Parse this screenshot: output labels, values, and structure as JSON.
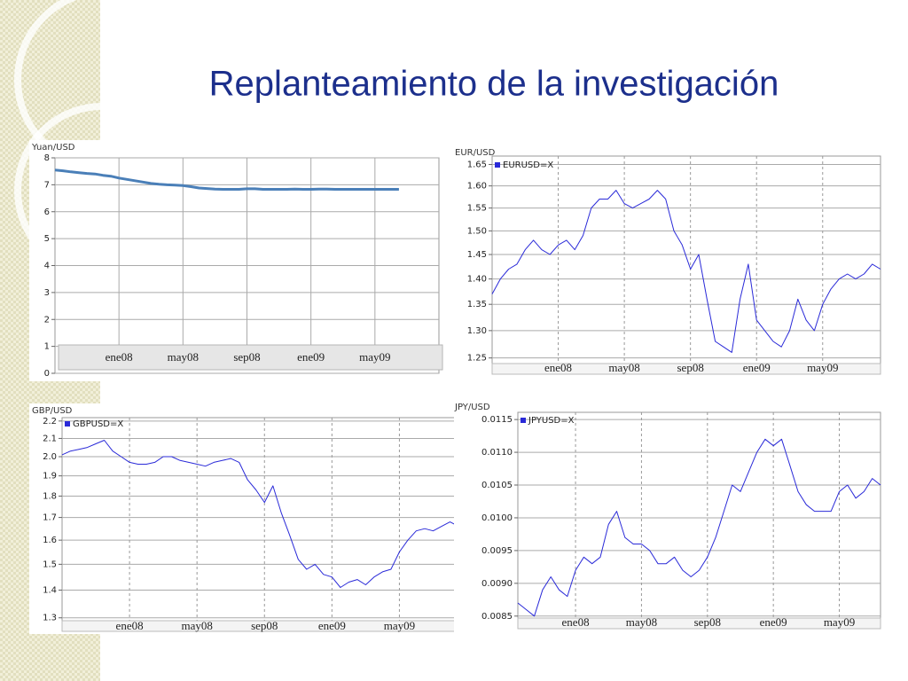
{
  "slide_title": "Replanteamiento de la investigación",
  "chart_data": [
    {
      "type": "line",
      "y_label": "Yuan/USD",
      "color": "#4a7fb8",
      "grid": true,
      "log_scale": false,
      "ylim": [
        0,
        8
      ],
      "yticks": [
        0,
        1,
        2,
        3,
        4,
        5,
        6,
        7,
        8
      ],
      "categories": [
        null,
        null,
        null,
        null,
        null,
        null,
        null,
        null,
        "ene08",
        null,
        null,
        null,
        null,
        null,
        null,
        null,
        "may08",
        null,
        null,
        null,
        null,
        null,
        null,
        null,
        "sep08",
        null,
        null,
        null,
        null,
        null,
        null,
        null,
        "ene09",
        null,
        null,
        null,
        null,
        null,
        null,
        null,
        "may09",
        null,
        null,
        null,
        null,
        null,
        null,
        null,
        null
      ],
      "values": [
        7.55,
        7.52,
        7.48,
        7.45,
        7.42,
        7.4,
        7.35,
        7.32,
        7.25,
        7.2,
        7.15,
        7.1,
        7.05,
        7.02,
        7.0,
        6.99,
        6.97,
        6.93,
        6.88,
        6.86,
        6.84,
        6.83,
        6.83,
        6.83,
        6.85,
        6.85,
        6.83,
        6.83,
        6.83,
        6.83,
        6.84,
        6.83,
        6.83,
        6.84,
        6.84,
        6.83,
        6.83,
        6.83,
        6.83,
        6.83,
        6.83,
        6.83,
        6.83,
        6.83,
        null,
        null,
        null,
        null,
        null
      ]
    },
    {
      "type": "line",
      "y_label": "EUR/USD",
      "grid": true,
      "log_scale": true,
      "ylim": [
        1.24,
        1.67
      ],
      "yticks": [
        1.65,
        {
          "value": 1.6,
          "label": "1.60"
        },
        1.55,
        {
          "value": 1.5,
          "label": "1.50"
        },
        1.45,
        {
          "value": 1.4,
          "label": "1.40"
        },
        1.35,
        {
          "value": 1.3,
          "label": "1.30"
        },
        1.25
      ],
      "categories": [
        null,
        null,
        null,
        null,
        null,
        null,
        null,
        null,
        "ene08",
        null,
        null,
        null,
        null,
        null,
        null,
        null,
        "may08",
        null,
        null,
        null,
        null,
        null,
        null,
        null,
        "sep08",
        null,
        null,
        null,
        null,
        null,
        null,
        null,
        "ene09",
        null,
        null,
        null,
        null,
        null,
        null,
        null,
        "may09",
        null,
        null,
        null,
        null,
        null,
        null,
        null
      ],
      "series": [
        {
          "name": "EURUSD=X",
          "color": "#2a2ad8",
          "values": [
            1.37,
            1.4,
            1.42,
            1.43,
            1.46,
            1.48,
            1.46,
            1.45,
            1.47,
            1.48,
            1.46,
            1.49,
            1.55,
            1.57,
            1.57,
            1.59,
            1.56,
            1.55,
            1.56,
            1.57,
            1.59,
            1.57,
            1.5,
            1.47,
            1.42,
            1.45,
            1.36,
            1.28,
            1.27,
            1.26,
            1.36,
            1.43,
            1.32,
            1.3,
            1.28,
            1.27,
            1.3,
            1.36,
            1.32,
            1.3,
            1.35,
            1.38,
            1.4,
            1.41,
            1.4,
            1.41,
            1.43,
            1.42
          ]
        }
      ]
    },
    {
      "type": "line",
      "y_label": "GBP/USD",
      "grid": true,
      "log_scale": true,
      "ylim": [
        1.29,
        2.22
      ],
      "yticks": [
        2.2,
        2.1,
        {
          "value": 2,
          "label": "2.0"
        },
        1.9,
        1.8,
        1.7,
        1.6,
        1.5,
        1.4,
        1.3
      ],
      "categories": [
        null,
        null,
        null,
        null,
        null,
        null,
        null,
        null,
        "ene08",
        null,
        null,
        null,
        null,
        null,
        null,
        null,
        "may08",
        null,
        null,
        null,
        null,
        null,
        null,
        null,
        "sep08",
        null,
        null,
        null,
        null,
        null,
        null,
        null,
        "ene09",
        null,
        null,
        null,
        null,
        null,
        null,
        null,
        "may09",
        null,
        null,
        null,
        null,
        null,
        null,
        null
      ],
      "series": [
        {
          "name": "GBPUSD=X",
          "color": "#2a2ad8",
          "values": [
            2.01,
            2.03,
            2.04,
            2.05,
            2.07,
            2.09,
            2.03,
            2.0,
            1.97,
            1.96,
            1.96,
            1.97,
            2.0,
            2.0,
            1.98,
            1.97,
            1.96,
            1.95,
            1.97,
            1.98,
            1.99,
            1.97,
            1.88,
            1.83,
            1.77,
            1.85,
            1.72,
            1.62,
            1.52,
            1.48,
            1.5,
            1.46,
            1.45,
            1.41,
            1.43,
            1.44,
            1.42,
            1.45,
            1.47,
            1.48,
            1.55,
            1.6,
            1.64,
            1.65,
            1.64,
            1.66,
            1.68,
            1.66
          ]
        }
      ]
    },
    {
      "type": "line",
      "y_label": "JPY/USD",
      "grid": true,
      "log_scale": false,
      "ylim": [
        0.00847,
        0.01161
      ],
      "yticks": [
        0.0115,
        {
          "value": 0.011,
          "label": "0.0110"
        },
        0.0105,
        {
          "value": 0.01,
          "label": "0.0100"
        },
        0.0095,
        {
          "value": 0.009,
          "label": "0.0090"
        },
        0.0085
      ],
      "categories": [
        null,
        null,
        null,
        null,
        null,
        null,
        null,
        "ene08",
        null,
        null,
        null,
        null,
        null,
        null,
        null,
        "may08",
        null,
        null,
        null,
        null,
        null,
        null,
        null,
        "sep08",
        null,
        null,
        null,
        null,
        null,
        null,
        null,
        "ene09",
        null,
        null,
        null,
        null,
        null,
        null,
        null,
        "may09",
        null,
        null,
        null,
        null,
        null
      ],
      "series": [
        {
          "name": "JPYUSD=X",
          "color": "#2a2ad8",
          "values": [
            0.0087,
            0.0086,
            0.0085,
            0.0089,
            0.0091,
            0.0089,
            0.0088,
            0.0092,
            0.0094,
            0.0093,
            0.0094,
            0.0099,
            0.0101,
            0.0097,
            0.0096,
            0.0096,
            0.0095,
            0.0093,
            0.0093,
            0.0094,
            0.0092,
            0.0091,
            0.0092,
            0.0094,
            0.0097,
            0.0101,
            0.0105,
            0.0104,
            0.0107,
            0.011,
            0.0112,
            0.0111,
            0.0112,
            0.0108,
            0.0104,
            0.0102,
            0.0101,
            0.0101,
            0.0101,
            0.0104,
            0.0105,
            0.0103,
            0.0104,
            0.0106,
            0.0105
          ]
        }
      ]
    }
  ]
}
